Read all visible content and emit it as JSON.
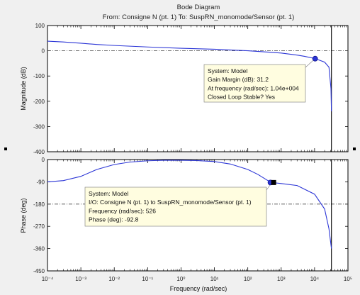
{
  "chart_data": {
    "type": "line",
    "title": "Bode Diagram",
    "subtitle": "From: Consigne N (pt. 1)  To: SuspRN_monomode/Sensor (pt. 1)",
    "xlabel": "Frequency  (rad/sec)",
    "x_scale": "log",
    "x_range": [
      0.0001,
      100000
    ],
    "x_tick_labels": [
      "10⁻⁴",
      "10⁻³",
      "10⁻²",
      "10⁻¹",
      "10⁰",
      "10¹",
      "10²",
      "10³",
      "10⁴",
      "10⁵"
    ],
    "color": "#2b35d6",
    "axes": [
      {
        "name": "magnitude",
        "ylabel": "Magnitude (dB)",
        "ylim": [
          -400,
          100
        ],
        "yticks": [
          -400,
          -300,
          -200,
          -100,
          0,
          100
        ],
        "reference_line": 0,
        "series": [
          {
            "x": [
              0.0001,
              0.0003,
              0.001,
              0.003,
              0.01,
              0.1,
              1,
              10,
              100,
              300,
              1000,
              3000,
              5000,
              10400,
              20000,
              27000,
              31000,
              32000
            ],
            "y": [
              38,
              35,
              30,
              25,
              21,
              15,
              10,
              6,
              0,
              -4,
              -9,
              -17,
              -22,
              -31,
              -45,
              -65,
              -150,
              -240
            ]
          }
        ],
        "marker": {
          "x": 10400,
          "y": -31.2
        },
        "datatip": [
          "System: Model",
          "Gain Margin (dB): 31.2",
          "At frequency (rad/sec): 1.04e+004",
          "Closed Loop Stable? Yes"
        ]
      },
      {
        "name": "phase",
        "ylabel": "Phase (deg)",
        "ylim": [
          -450,
          0
        ],
        "yticks": [
          -450,
          -360,
          -270,
          -180,
          -90,
          0
        ],
        "reference_line": -180,
        "series": [
          {
            "x": [
              0.0001,
              0.0003,
              0.001,
              0.003,
              0.01,
              0.03,
              0.1,
              0.3,
              1,
              3,
              10,
              30,
              100,
              200,
              400,
              526,
              1000,
              3000,
              10000,
              20000,
              27000,
              32000
            ],
            "y": [
              -90,
              -85,
              -68,
              -40,
              -20,
              -10,
              -5,
              -3,
              -3,
              -4,
              -8,
              -18,
              -40,
              -60,
              -85,
              -92.8,
              -97,
              -105,
              -140,
              -200,
              -280,
              -360
            ]
          }
        ],
        "marker": {
          "x": 526,
          "y": -92.8
        },
        "datatip": [
          "System: Model",
          "I/O: Consigne N (pt. 1) to SuspRN_monomode/Sensor (pt. 1)",
          "Frequency (rad/sec): 526",
          "Phase (deg): -92.8"
        ]
      }
    ],
    "vertical_line_x": 32000
  }
}
